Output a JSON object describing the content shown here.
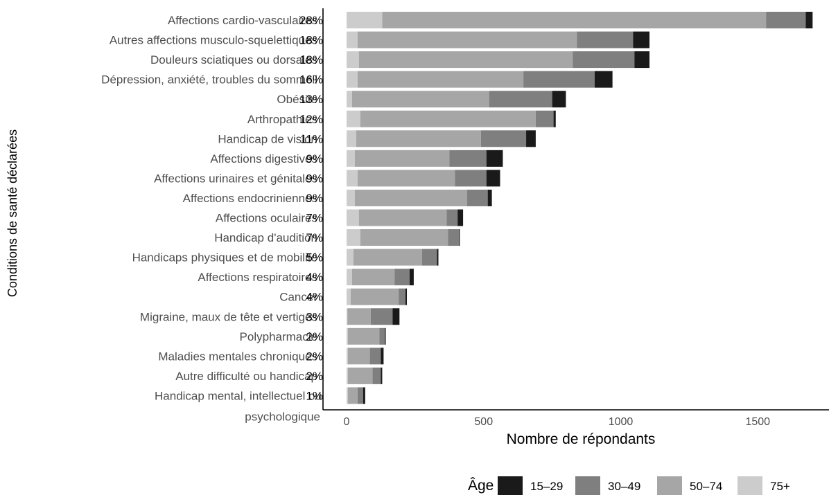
{
  "chart_data": {
    "type": "bar",
    "orientation": "horizontal",
    "stacked": true,
    "xlabel": "Nombre de répondants",
    "ylabel": "Conditions de santé déclarées",
    "xlim": [
      0,
      1760
    ],
    "x_ticks": [
      0,
      500,
      1000,
      1500
    ],
    "grid": false,
    "legend": {
      "title": "Âge",
      "placement": "bottom",
      "entries": [
        {
          "name": "15–29",
          "color": "#1a1a1a"
        },
        {
          "name": "30–49",
          "color": "#7f7f7f"
        },
        {
          "name": "50–74",
          "color": "#a6a6a6"
        },
        {
          "name": "75+",
          "color": "#cccccc"
        }
      ]
    },
    "stack_order": [
      "75+",
      "50–74",
      "30–49",
      "15–29"
    ],
    "categories": [
      {
        "label": "Affections cardio-vasculaires",
        "pct": "28%",
        "values": {
          "75+": 130,
          "50–74": 1400,
          "30–49": 145,
          "15–29": 25
        }
      },
      {
        "label": "Autres affections musculo-squelettiques",
        "pct": "18%",
        "values": {
          "75+": 40,
          "50–74": 800,
          "30–49": 205,
          "15–29": 60
        }
      },
      {
        "label": "Douleurs  sciatiques ou dorsales",
        "pct": "18%",
        "values": {
          "75+": 45,
          "50–74": 780,
          "30–49": 225,
          "15–29": 55
        }
      },
      {
        "label": "Dépression, anxiété, troubles du sommeil",
        "pct": "16%",
        "values": {
          "75+": 40,
          "50–74": 605,
          "30–49": 260,
          "15–29": 65
        }
      },
      {
        "label": "Obésité",
        "pct": "13%",
        "values": {
          "75+": 20,
          "50–74": 500,
          "30–49": 230,
          "15–29": 50
        }
      },
      {
        "label": "Arthropathies",
        "pct": "12%",
        "values": {
          "75+": 50,
          "50–74": 640,
          "30–49": 65,
          "15–29": 8
        }
      },
      {
        "label": "Handicap de vision",
        "pct": "11%",
        "values": {
          "75+": 35,
          "50–74": 455,
          "30–49": 165,
          "15–29": 35
        }
      },
      {
        "label": "Affections digestives",
        "pct": "9%",
        "values": {
          "75+": 30,
          "50–74": 345,
          "30–49": 135,
          "15–29": 60
        }
      },
      {
        "label": "Affections urinaires et génitales",
        "pct": "9%",
        "values": {
          "75+": 40,
          "50–74": 355,
          "30–49": 115,
          "15–29": 50
        }
      },
      {
        "label": "Affections endocriniennes",
        "pct": "9%",
        "values": {
          "75+": 30,
          "50–74": 410,
          "30–49": 75,
          "15–29": 15
        }
      },
      {
        "label": "Affections oculaires",
        "pct": "7%",
        "values": {
          "75+": 45,
          "50–74": 320,
          "30–49": 40,
          "15–29": 20
        }
      },
      {
        "label": "Handicap d'audition",
        "pct": "7%",
        "values": {
          "75+": 50,
          "50–74": 320,
          "30–49": 40,
          "15–29": 3
        }
      },
      {
        "label": "Handicaps physiques et de mobilité",
        "pct": "5%",
        "values": {
          "75+": 25,
          "50–74": 250,
          "30–49": 55,
          "15–29": 5
        }
      },
      {
        "label": "Affections respiratoires",
        "pct": "4%",
        "values": {
          "75+": 20,
          "50–74": 155,
          "30–49": 55,
          "15–29": 15
        }
      },
      {
        "label": "Cancer",
        "pct": "4%",
        "values": {
          "75+": 15,
          "50–74": 175,
          "30–49": 25,
          "15–29": 5
        }
      },
      {
        "label": "Migraine, maux de tête et vertiges",
        "pct": "3%",
        "values": {
          "75+": 3,
          "50–74": 85,
          "30–49": 80,
          "15–29": 25
        }
      },
      {
        "label": "Polypharmacie",
        "pct": "2%",
        "values": {
          "75+": 5,
          "50–74": 115,
          "30–49": 20,
          "15–29": 3
        }
      },
      {
        "label": "Maladies mentales chroniques",
        "pct": "2%",
        "values": {
          "75+": 5,
          "50–74": 80,
          "30–49": 40,
          "15–29": 10
        }
      },
      {
        "label": "Autre difficulté ou handicap",
        "pct": "2%",
        "values": {
          "75+": 5,
          "50–74": 90,
          "30–49": 30,
          "15–29": 5
        }
      },
      {
        "label": "Handicap mental, intellectuel ou psychologique",
        "pct": "1%",
        "values": {
          "75+": 5,
          "50–74": 35,
          "30–49": 20,
          "15–29": 8
        }
      }
    ]
  }
}
